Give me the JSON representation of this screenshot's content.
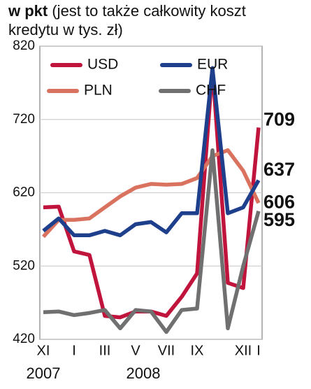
{
  "chart_data": {
    "type": "line",
    "title_bold": "w pkt",
    "title": "(jest to także całkowity koszt kredytu w tys. zł)",
    "categories": [
      "XI",
      null,
      "I",
      null,
      "III",
      null,
      "V",
      null,
      "VII",
      null,
      "IX",
      null,
      null,
      "XII",
      "I"
    ],
    "years": [
      "2007",
      "2008"
    ],
    "series": [
      {
        "name": "USD",
        "color": "#c0143c",
        "values": [
          600,
          601,
          540,
          535,
          452,
          450,
          458,
          458,
          452,
          478,
          510,
          790,
          497,
          490,
          709
        ]
      },
      {
        "name": "EUR",
        "color": "#1d3f8c",
        "values": [
          568,
          585,
          562,
          562,
          568,
          562,
          577,
          580,
          566,
          592,
          592,
          790,
          592,
          600,
          637
        ]
      },
      {
        "name": "PLN",
        "color": "#d9735f",
        "values": [
          560,
          583,
          583,
          585,
          600,
          615,
          627,
          632,
          631,
          632,
          640,
          670,
          678,
          650,
          606
        ]
      },
      {
        "name": "CHF",
        "color": "#707070",
        "values": [
          457,
          458,
          453,
          456,
          460,
          435,
          460,
          458,
          430,
          460,
          462,
          678,
          435,
          520,
          595
        ]
      }
    ],
    "ylim": [
      420,
      820
    ],
    "yticks": [
      420,
      520,
      620,
      720,
      820
    ],
    "grid": true
  }
}
